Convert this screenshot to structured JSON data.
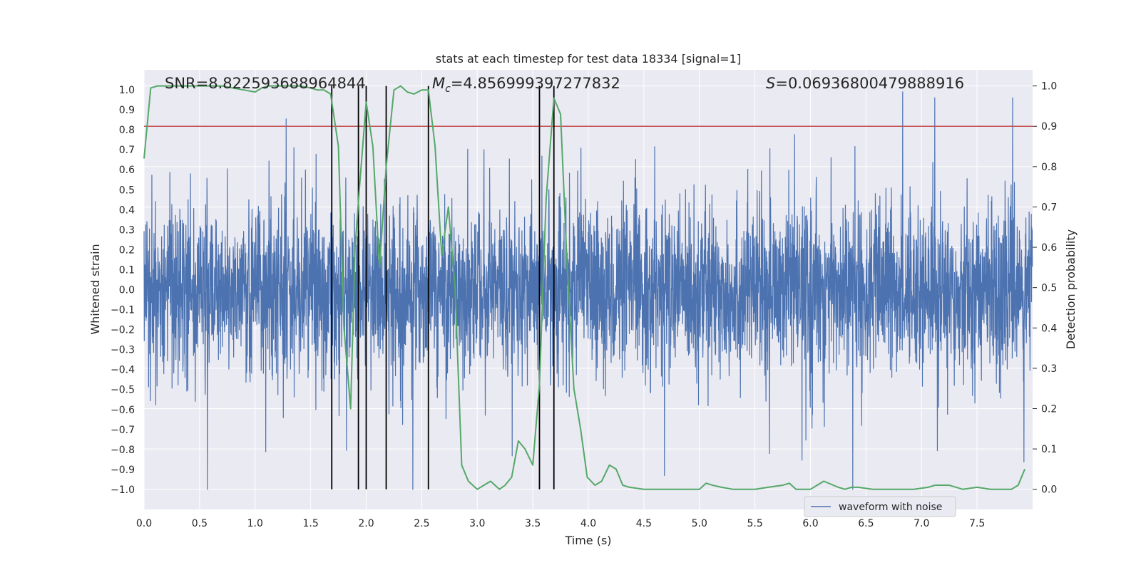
{
  "chart_data": {
    "type": "line",
    "title": "stats at each timestep for test data 18334 [signal=1]",
    "xlabel": "Time (s)",
    "ylabel": "Whitened strain",
    "ylabel_right": "Detection probability",
    "xlim": [
      0.0,
      8.0
    ],
    "ylim": [
      -1.1,
      1.1
    ],
    "ylim_right": [
      -0.05,
      1.04
    ],
    "xticks": [
      "0.0",
      "0.5",
      "1.0",
      "1.5",
      "2.0",
      "2.5",
      "3.0",
      "3.5",
      "4.0",
      "4.5",
      "5.0",
      "5.5",
      "6.0",
      "6.5",
      "7.0",
      "7.5"
    ],
    "yticks": [
      "1.0",
      "0.9",
      "0.8",
      "0.7",
      "0.6",
      "0.5",
      "0.4",
      "0.3",
      "0.2",
      "0.1",
      "0.0",
      "−0.1",
      "−0.2",
      "−0.3",
      "−0.4",
      "−0.5",
      "−0.6",
      "−0.7",
      "−0.8",
      "−0.9",
      "−1.0"
    ],
    "yticks_right": [
      "1.0",
      "0.9",
      "0.8",
      "0.7",
      "0.6",
      "0.5",
      "0.4",
      "0.3",
      "0.2",
      "0.1",
      "0.0"
    ],
    "grid": true,
    "legend_position": "lower-right",
    "annotations": {
      "snr": "SNR=8.822593688964844",
      "mc_symbol": "M",
      "mc_sub": "c",
      "mc_value": "=4.856999397277832",
      "s_symbol": "S",
      "s_value": "=0.06936800479888916"
    },
    "threshold_right": 0.9,
    "vlines_x": [
      1.69,
      1.93,
      2.0,
      2.18,
      2.56,
      3.56,
      3.69
    ],
    "series": [
      {
        "name": "waveform with noise",
        "kind": "noise",
        "color": "#4c72b0",
        "samples_per_second": 512,
        "upper_envelope_typical": 0.55,
        "lower_envelope_typical": -0.55,
        "peaks_high": [
          {
            "x": 0.57,
            "y": -1.0
          },
          {
            "x": 1.35,
            "y": 0.71
          },
          {
            "x": 2.42,
            "y": -1.0
          },
          {
            "x": 3.06,
            "y": 0.7
          },
          {
            "x": 5.63,
            "y": -0.82
          },
          {
            "x": 6.38,
            "y": -1.0
          },
          {
            "x": 6.83,
            "y": 0.99
          },
          {
            "x": 7.12,
            "y": 0.96
          },
          {
            "x": 7.82,
            "y": 0.96
          }
        ]
      },
      {
        "name": "",
        "kind": "probability",
        "color": "#55a868",
        "x": [
          0.0,
          0.06,
          0.12,
          0.2,
          0.3,
          0.4,
          0.5,
          0.6,
          0.7,
          0.8,
          0.9,
          1.0,
          1.06,
          1.12,
          1.2,
          1.3,
          1.4,
          1.5,
          1.56,
          1.62,
          1.68,
          1.75,
          1.8,
          1.86,
          1.9,
          1.94,
          2.0,
          2.06,
          2.12,
          2.18,
          2.25,
          2.31,
          2.37,
          2.43,
          2.5,
          2.56,
          2.62,
          2.68,
          2.74,
          2.8,
          2.86,
          2.92,
          3.0,
          3.06,
          3.12,
          3.2,
          3.25,
          3.31,
          3.37,
          3.43,
          3.5,
          3.56,
          3.62,
          3.69,
          3.75,
          3.81,
          3.87,
          3.93,
          3.99,
          4.06,
          4.12,
          4.19,
          4.25,
          4.31,
          4.37,
          4.5,
          4.62,
          4.75,
          4.87,
          5.0,
          5.06,
          5.12,
          5.2,
          5.3,
          5.5,
          5.62,
          5.75,
          5.81,
          5.87,
          5.93,
          6.0,
          6.06,
          6.12,
          6.25,
          6.31,
          6.37,
          6.43,
          6.56,
          6.75,
          6.93,
          7.06,
          7.12,
          7.25,
          7.37,
          7.5,
          7.62,
          7.75,
          7.81,
          7.87,
          7.93
        ],
        "y": [
          0.82,
          0.995,
          1.0,
          1.0,
          1.0,
          1.0,
          1.0,
          1.0,
          1.0,
          0.995,
          0.99,
          0.985,
          0.995,
          1.0,
          1.0,
          1.0,
          1.0,
          0.995,
          0.99,
          0.99,
          0.98,
          0.85,
          0.4,
          0.2,
          0.6,
          0.75,
          0.96,
          0.85,
          0.55,
          0.8,
          0.99,
          1.0,
          0.985,
          0.98,
          0.99,
          0.99,
          0.85,
          0.58,
          0.7,
          0.5,
          0.06,
          0.02,
          0.0,
          0.01,
          0.02,
          0.0,
          0.01,
          0.03,
          0.12,
          0.1,
          0.06,
          0.26,
          0.72,
          0.97,
          0.93,
          0.55,
          0.25,
          0.15,
          0.03,
          0.01,
          0.02,
          0.06,
          0.05,
          0.01,
          0.005,
          0.0,
          0.0,
          0.0,
          0.0,
          0.0,
          0.015,
          0.01,
          0.005,
          0.0,
          0.0,
          0.005,
          0.01,
          0.015,
          0.0,
          0.0,
          0.0,
          0.01,
          0.02,
          0.005,
          0.0,
          0.005,
          0.005,
          0.0,
          0.0,
          0.0,
          0.005,
          0.01,
          0.01,
          0.0,
          0.005,
          0.0,
          0.0,
          0.0,
          0.01,
          0.05
        ]
      }
    ]
  }
}
